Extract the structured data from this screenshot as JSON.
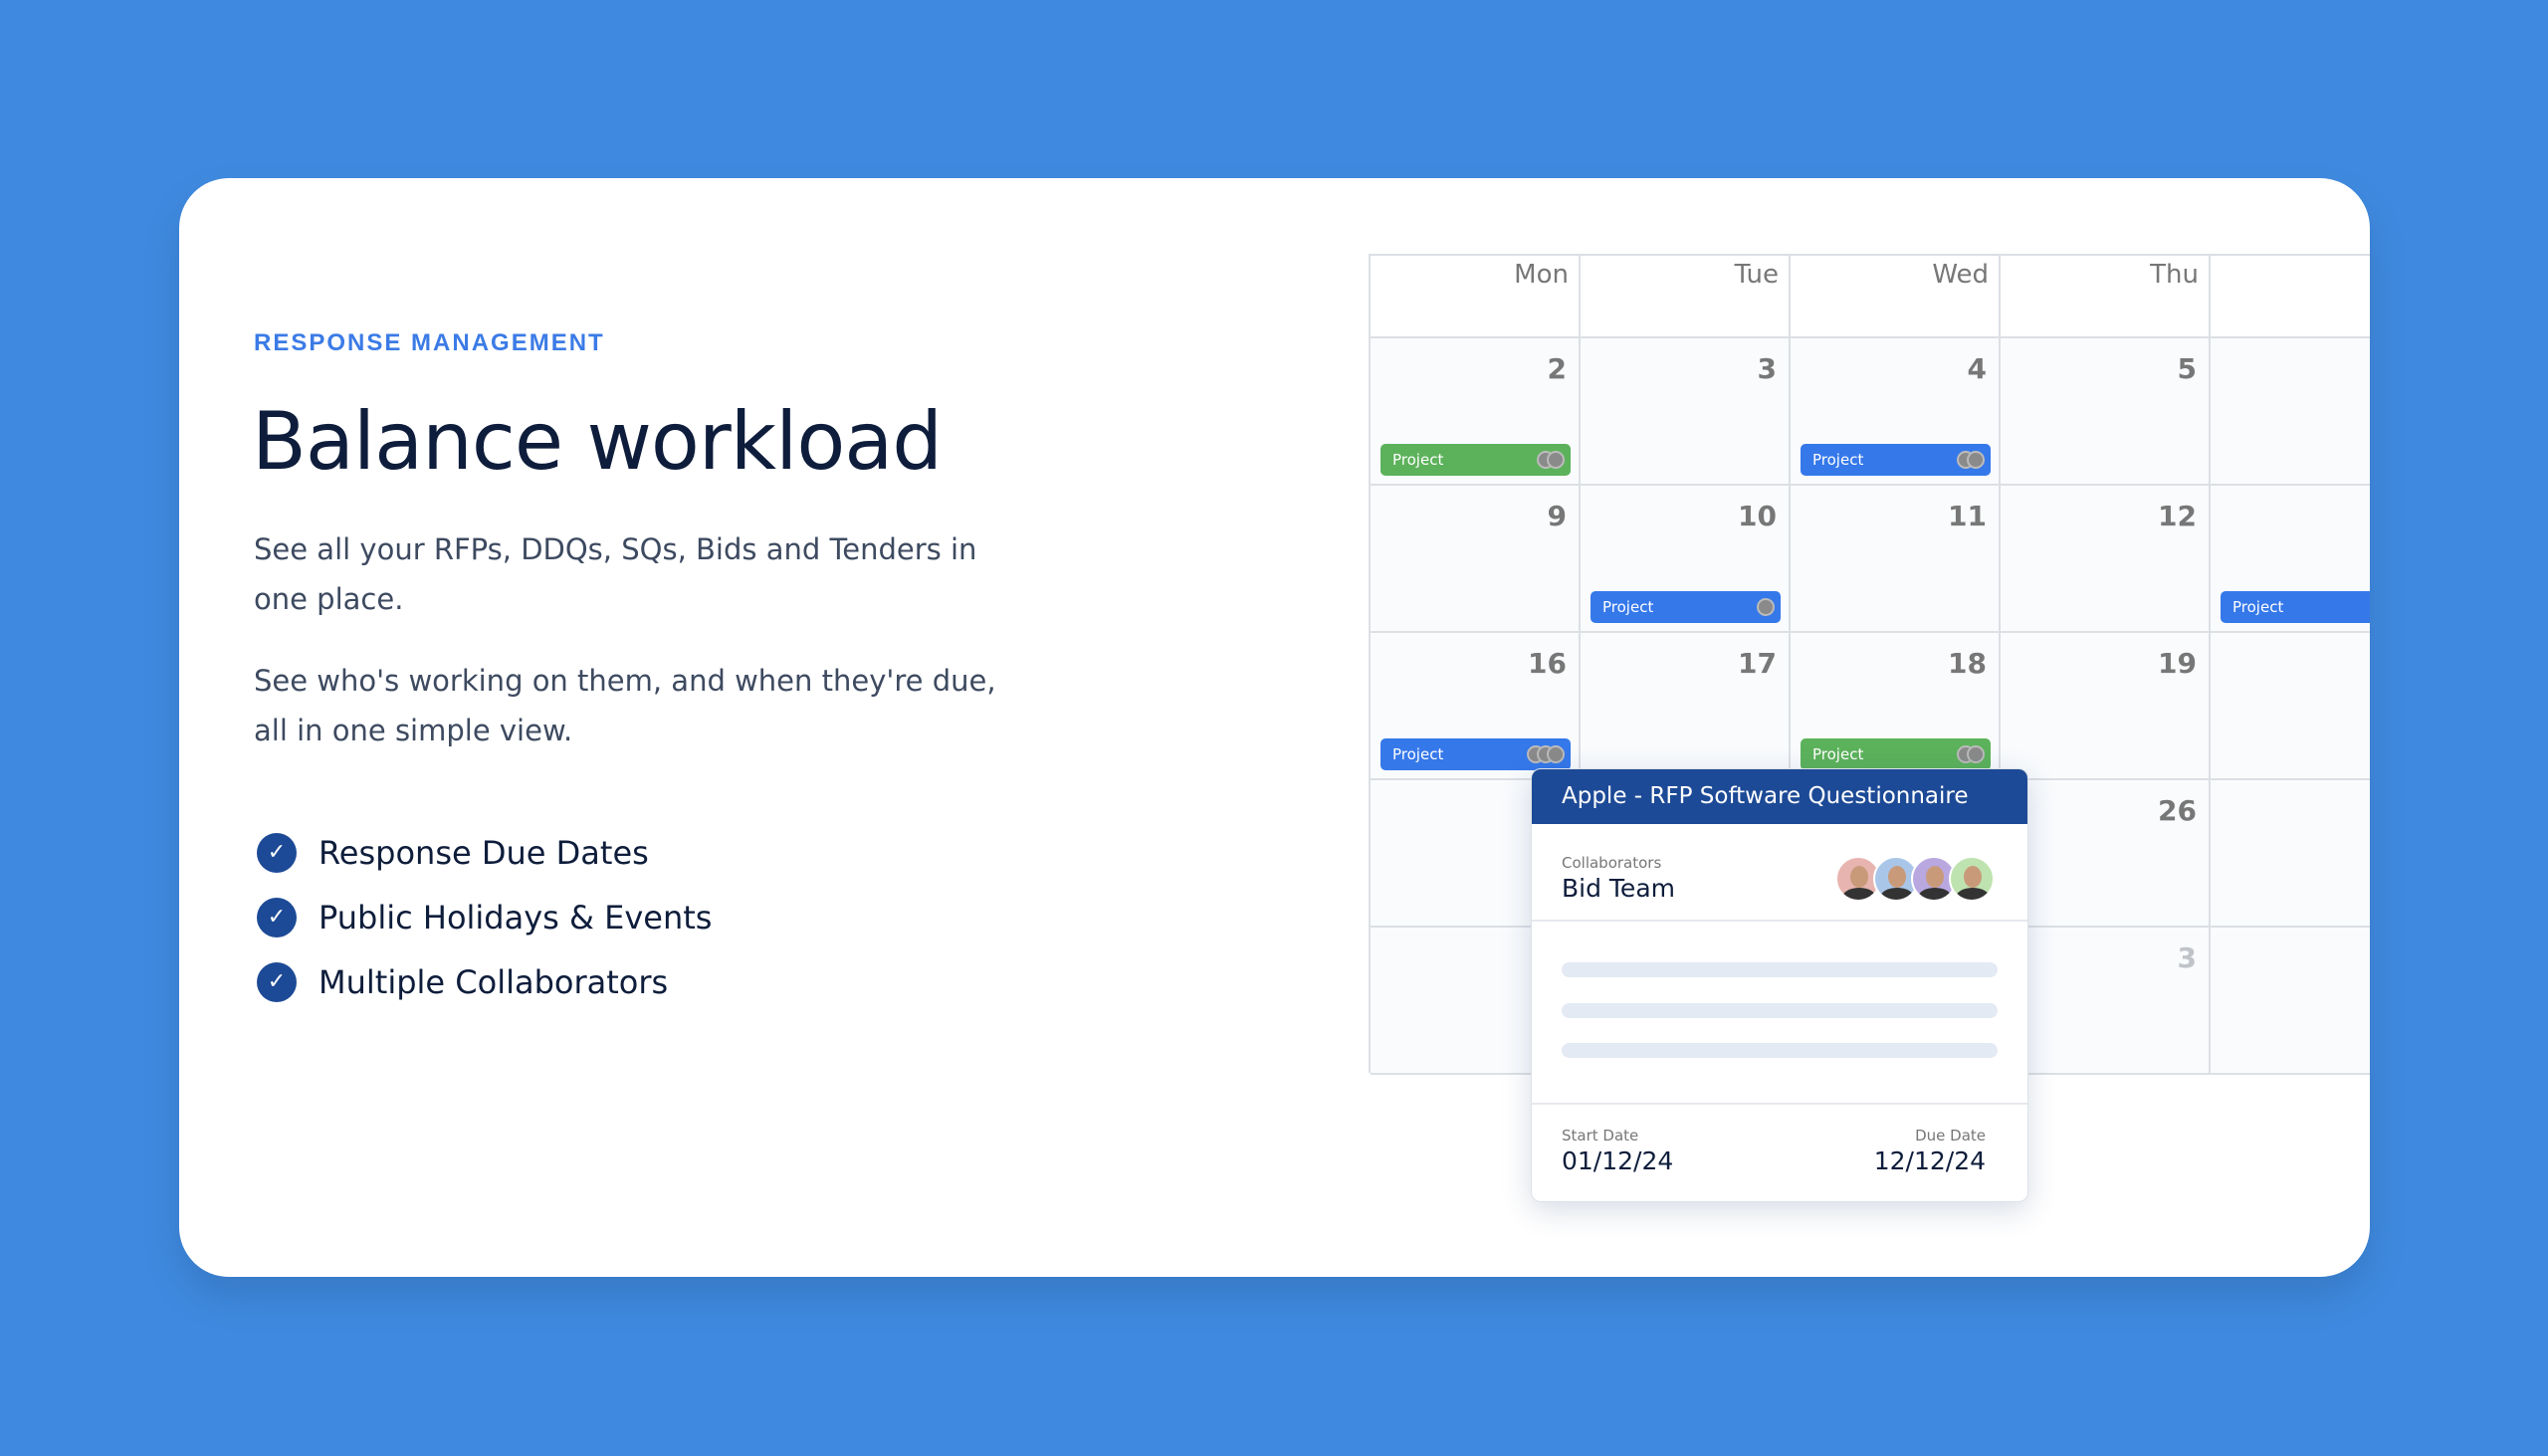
{
  "eyebrow": "RESPONSE MANAGEMENT",
  "title": "Balance workload",
  "paragraphs": [
    "See all your RFPs, DDQs, SQs, Bids and Tenders in one place.",
    "See who's working on them, and when they're due, all in one simple view."
  ],
  "features": [
    "Response Due Dates",
    "Public Holidays & Events",
    "Multiple Collaborators"
  ],
  "calendar": {
    "days": [
      "Mon",
      "Tue",
      "Wed",
      "Thu",
      ""
    ],
    "weeks": [
      [
        "2",
        "3",
        "4",
        "5",
        ""
      ],
      [
        "9",
        "10",
        "11",
        "12",
        ""
      ],
      [
        "16",
        "17",
        "18",
        "19",
        ""
      ],
      [
        "",
        "",
        "",
        "26",
        ""
      ],
      [
        "",
        "",
        "",
        "3",
        ""
      ]
    ],
    "events": [
      {
        "label": "Project",
        "color": "#5cb25b",
        "week": 0,
        "day": 0,
        "avatars": 2
      },
      {
        "label": "Project",
        "color": "#3578ea",
        "week": 0,
        "day": 2,
        "avatars": 2
      },
      {
        "label": "Project",
        "color": "#3578ea",
        "week": 1,
        "day": 1,
        "avatars": 1
      },
      {
        "label": "Project",
        "color": "#3578ea",
        "week": 1,
        "day": 4,
        "avatars": 0
      },
      {
        "label": "Project",
        "color": "#3578ea",
        "week": 2,
        "day": 0,
        "avatars": 3
      },
      {
        "label": "Project",
        "color": "#5cb25b",
        "week": 2,
        "day": 2,
        "avatars": 2
      }
    ]
  },
  "popup": {
    "title": "Apple - RFP Software Questionnaire",
    "collaborators_label": "Collaborators",
    "collaborators_value": "Bid Team",
    "start_label": "Start Date",
    "start_value": "01/12/24",
    "due_label": "Due Date",
    "due_value": "12/12/24",
    "avatar_colors": [
      "#e8b4b0",
      "#a9c6e8",
      "#b9a8e0",
      "#bfe3b0"
    ]
  }
}
